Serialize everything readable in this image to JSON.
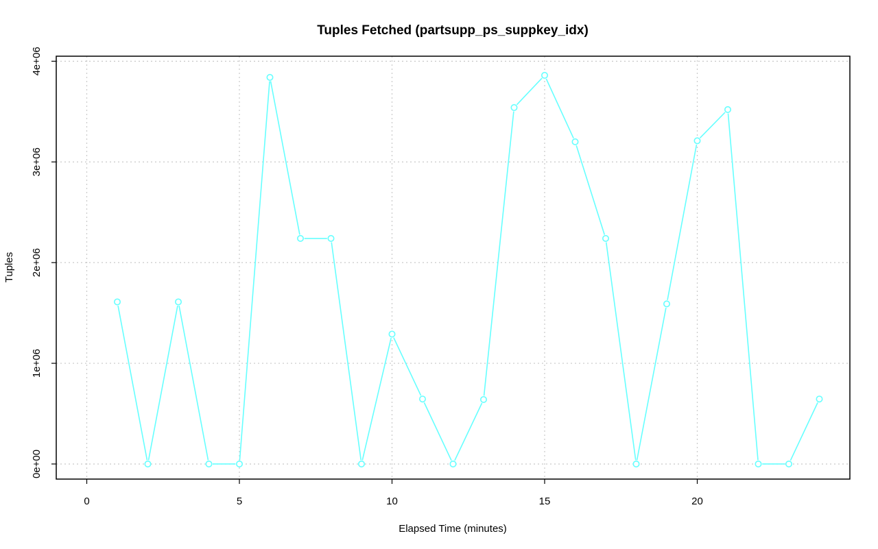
{
  "chart_data": {
    "type": "line",
    "title": "Tuples Fetched (partsupp_ps_suppkey_idx)",
    "xlabel": "Elapsed Time (minutes)",
    "ylabel": "Tuples",
    "xlim": [
      -1,
      25
    ],
    "ylim": [
      -150000,
      4050000
    ],
    "x_ticks": [
      0,
      5,
      10,
      15,
      20
    ],
    "x_tick_labels": [
      "0",
      "5",
      "10",
      "15",
      "20"
    ],
    "y_ticks": [
      0,
      1000000,
      2000000,
      3000000,
      4000000
    ],
    "y_tick_labels": [
      "0e+00",
      "1e+06",
      "2e+06",
      "3e+06",
      "4e+06"
    ],
    "grid": true,
    "series": [
      {
        "color": "#66ffff",
        "x": [
          1,
          2,
          3,
          4,
          5,
          6,
          7,
          8,
          9,
          10,
          11,
          12,
          13,
          14,
          15,
          16,
          17,
          18,
          19,
          20,
          21,
          22,
          23,
          24
        ],
        "y": [
          1610000,
          0,
          1610000,
          0,
          0,
          3840000,
          2240000,
          2240000,
          0,
          1290000,
          645000,
          0,
          640000,
          3540000,
          3860000,
          3200000,
          2240000,
          0,
          1590000,
          3210000,
          3520000,
          0,
          0,
          645000
        ]
      }
    ]
  }
}
